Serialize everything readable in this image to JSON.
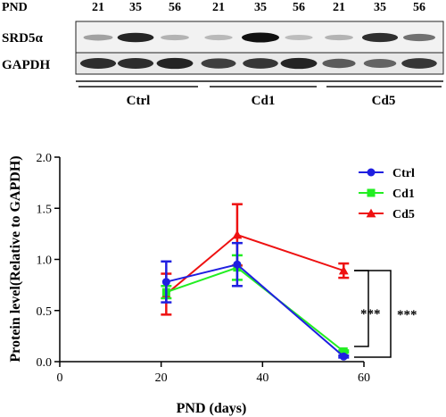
{
  "blot": {
    "pnd_label": "PND",
    "lane_labels": [
      "21",
      "35",
      "56",
      "21",
      "35",
      "56",
      "21",
      "35",
      "56"
    ],
    "rows": [
      {
        "label": "SRD5α",
        "intensities": [
          0.25,
          0.9,
          0.15,
          0.12,
          1.0,
          0.1,
          0.15,
          0.85,
          0.5
        ]
      },
      {
        "label": "GAPDH",
        "intensities": [
          0.85,
          0.85,
          0.9,
          0.75,
          0.8,
          0.9,
          0.6,
          0.55,
          0.8
        ]
      }
    ],
    "groups": [
      "Ctrl",
      "Cd1",
      "Cd5"
    ],
    "band_color": "#111111"
  },
  "chart_data": {
    "type": "line",
    "xlabel": "PND (days)",
    "ylabel": "Protein level(Relative to GAPDH)",
    "xlim": [
      0,
      60
    ],
    "ylim": [
      0,
      2.0
    ],
    "xticks": [
      "0",
      "20",
      "40",
      "60"
    ],
    "yticks": [
      "0.0",
      "0.5",
      "1.0",
      "1.5",
      "2.0"
    ],
    "x": [
      21,
      35,
      56
    ],
    "legend_position": "top-right",
    "series": [
      {
        "name": "Ctrl",
        "color": "#1f1fe0",
        "marker": "circle",
        "values": [
          0.78,
          0.95,
          0.05
        ],
        "errors": [
          0.2,
          0.21,
          0.01
        ]
      },
      {
        "name": "Cd1",
        "color": "#22ee22",
        "marker": "square",
        "values": [
          0.68,
          0.92,
          0.1
        ],
        "errors": [
          0.06,
          0.12,
          0.01
        ]
      },
      {
        "name": "Cd5",
        "color": "#ee1111",
        "marker": "triangle",
        "values": [
          0.66,
          1.24,
          0.89
        ],
        "errors": [
          0.2,
          0.3,
          0.07
        ]
      }
    ],
    "annotations": [
      "***",
      "***"
    ]
  }
}
